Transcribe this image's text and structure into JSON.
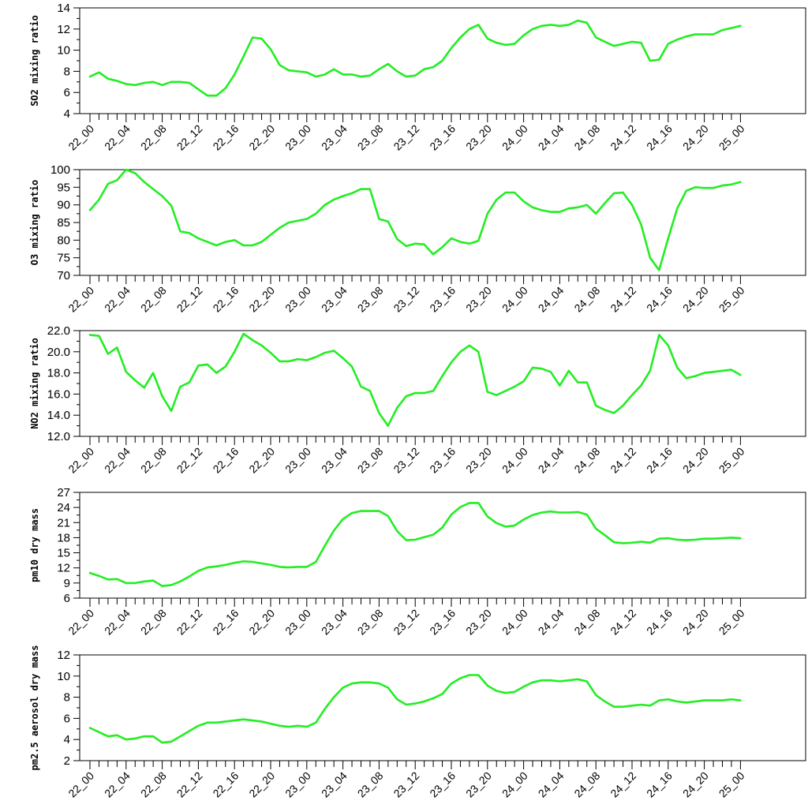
{
  "line_color": "#22ee22",
  "chart_data": [
    {
      "type": "line",
      "ylabel": "SO2 mixing ratio",
      "ylim": [
        4,
        14
      ],
      "yticks": [
        "4",
        "6",
        "8",
        "10",
        "12",
        "14"
      ],
      "xtick_labels": [
        "22_00",
        "22_04",
        "22_08",
        "22_12",
        "22_16",
        "22_20",
        "23_00",
        "23_04",
        "23_08",
        "23_12",
        "23_16",
        "23_20",
        "24_00",
        "24_04",
        "24_08",
        "24_12",
        "24_16",
        "24_20",
        "25_00"
      ],
      "grid": false,
      "legend": false,
      "values": [
        7.5,
        7.9,
        7.3,
        7.1,
        6.8,
        6.7,
        6.9,
        7.0,
        6.7,
        7.0,
        7.0,
        6.9,
        6.3,
        5.7,
        5.7,
        6.4,
        7.7,
        9.4,
        11.2,
        11.1,
        10.1,
        8.6,
        8.1,
        8.0,
        7.9,
        7.5,
        7.7,
        8.2,
        7.7,
        7.7,
        7.5,
        7.6,
        8.2,
        8.7,
        8.0,
        7.5,
        7.6,
        8.2,
        8.4,
        9.0,
        10.2,
        11.2,
        12.0,
        12.4,
        11.1,
        10.7,
        10.5,
        10.6,
        11.4,
        12.0,
        12.3,
        12.4,
        12.3,
        12.4,
        12.8,
        12.6,
        11.2,
        10.8,
        10.4,
        10.6,
        10.8,
        10.7,
        9.0,
        9.1,
        10.6,
        11.0,
        11.3,
        11.5,
        11.5,
        11.5,
        11.9,
        12.1,
        12.3
      ]
    },
    {
      "type": "line",
      "ylabel": "O3 mixing ratio",
      "ylim": [
        70,
        100
      ],
      "yticks": [
        "70",
        "75",
        "80",
        "85",
        "90",
        "95",
        "100"
      ],
      "xtick_labels": [
        "22_00",
        "22_04",
        "22_08",
        "22_12",
        "22_16",
        "22_20",
        "23_00",
        "23_04",
        "23_08",
        "23_12",
        "23_16",
        "23_20",
        "24_00",
        "24_04",
        "24_08",
        "24_12",
        "24_16",
        "24_20",
        "25_00"
      ],
      "grid": false,
      "legend": false,
      "values": [
        88.5,
        91.5,
        96.0,
        97.0,
        100.0,
        99.0,
        96.5,
        94.5,
        92.5,
        89.8,
        82.5,
        82.0,
        80.5,
        79.5,
        78.5,
        79.5,
        80.0,
        78.5,
        78.5,
        79.5,
        81.5,
        83.5,
        85.0,
        85.5,
        86.0,
        87.5,
        90.0,
        91.5,
        92.5,
        93.3,
        94.5,
        94.5,
        86.0,
        85.3,
        80.3,
        78.3,
        79.0,
        78.8,
        76.0,
        78.0,
        80.5,
        79.5,
        79.0,
        79.8,
        87.5,
        91.5,
        93.5,
        93.5,
        91.0,
        89.3,
        88.5,
        88.0,
        88.0,
        89.0,
        89.3,
        90.0,
        87.5,
        90.5,
        93.3,
        93.5,
        90.0,
        84.5,
        75.0,
        71.5,
        80.5,
        89.0,
        94.0,
        95.0,
        94.8,
        94.8,
        95.5,
        95.8,
        96.5
      ]
    },
    {
      "type": "line",
      "ylabel": "NO2 mixing ratio",
      "ylim": [
        12,
        22
      ],
      "yticks": [
        "12.0",
        "14.0",
        "16.0",
        "18.0",
        "20.0",
        "22.0"
      ],
      "xtick_labels": [
        "22_00",
        "22_04",
        "22_08",
        "22_12",
        "22_16",
        "22_20",
        "23_00",
        "23_04",
        "23_08",
        "23_12",
        "23_16",
        "23_20",
        "24_00",
        "24_04",
        "24_08",
        "24_12",
        "24_16",
        "24_20",
        "25_00"
      ],
      "grid": false,
      "legend": false,
      "values": [
        21.6,
        21.5,
        19.8,
        20.4,
        18.1,
        17.3,
        16.6,
        18.0,
        15.8,
        14.4,
        16.7,
        17.1,
        18.7,
        18.8,
        18.0,
        18.6,
        20.0,
        21.7,
        21.1,
        20.6,
        19.9,
        19.1,
        19.1,
        19.3,
        19.2,
        19.5,
        19.9,
        20.1,
        19.4,
        18.6,
        16.7,
        16.3,
        14.2,
        13.0,
        14.7,
        15.8,
        16.1,
        16.1,
        16.3,
        17.7,
        19.0,
        20.0,
        20.6,
        20.0,
        16.2,
        15.9,
        16.3,
        16.7,
        17.2,
        18.5,
        18.4,
        18.1,
        16.8,
        18.2,
        17.1,
        17.1,
        14.9,
        14.5,
        14.2,
        14.9,
        15.9,
        16.8,
        18.2,
        21.6,
        20.6,
        18.5,
        17.5,
        17.7,
        18.0,
        18.1,
        18.2,
        18.3,
        17.8
      ]
    },
    {
      "type": "line",
      "ylabel": "pm10 dry mass",
      "ylim": [
        6,
        27
      ],
      "yticks": [
        "6",
        "9",
        "12",
        "15",
        "18",
        "21",
        "24",
        "27"
      ],
      "xtick_labels": [
        "22_00",
        "22_04",
        "22_08",
        "22_12",
        "22_16",
        "22_20",
        "23_00",
        "23_04",
        "23_08",
        "23_12",
        "23_16",
        "23_20",
        "24_00",
        "24_04",
        "24_08",
        "24_12",
        "24_16",
        "24_20",
        "25_00"
      ],
      "grid": false,
      "legend": false,
      "values": [
        11.0,
        10.4,
        9.7,
        9.8,
        9.0,
        9.0,
        9.3,
        9.5,
        8.4,
        8.6,
        9.3,
        10.3,
        11.4,
        12.1,
        12.3,
        12.6,
        13.0,
        13.3,
        13.2,
        12.9,
        12.6,
        12.2,
        12.1,
        12.2,
        12.2,
        13.2,
        16.4,
        19.4,
        21.7,
        22.9,
        23.3,
        23.3,
        23.3,
        22.3,
        19.3,
        17.5,
        17.6,
        18.1,
        18.6,
        20.0,
        22.6,
        24.1,
        24.9,
        24.9,
        22.2,
        20.9,
        20.2,
        20.4,
        21.6,
        22.5,
        23.0,
        23.2,
        23.0,
        23.0,
        23.1,
        22.6,
        19.8,
        18.5,
        17.1,
        16.9,
        17.0,
        17.2,
        17.0,
        17.8,
        17.9,
        17.6,
        17.5,
        17.6,
        17.8,
        17.8,
        17.9,
        18.0,
        17.9
      ]
    },
    {
      "type": "line",
      "ylabel": "pm2.5 aerosol dry mass",
      "ylim": [
        2,
        12
      ],
      "yticks": [
        "2",
        "4",
        "6",
        "8",
        "10",
        "12"
      ],
      "xtick_labels": [
        "22_00",
        "22_04",
        "22_08",
        "22_12",
        "22_16",
        "22_20",
        "23_00",
        "23_04",
        "23_08",
        "23_12",
        "23_16",
        "23_20",
        "24_00",
        "24_04",
        "24_08",
        "24_12",
        "24_16",
        "24_20",
        "25_00"
      ],
      "grid": false,
      "legend": false,
      "values": [
        5.1,
        4.7,
        4.3,
        4.4,
        4.0,
        4.1,
        4.3,
        4.3,
        3.7,
        3.8,
        4.3,
        4.8,
        5.3,
        5.6,
        5.6,
        5.7,
        5.8,
        5.9,
        5.8,
        5.7,
        5.5,
        5.3,
        5.2,
        5.3,
        5.2,
        5.6,
        6.9,
        8.0,
        8.9,
        9.3,
        9.4,
        9.4,
        9.3,
        8.9,
        7.8,
        7.3,
        7.4,
        7.6,
        7.9,
        8.3,
        9.3,
        9.8,
        10.1,
        10.1,
        9.1,
        8.6,
        8.4,
        8.5,
        9.0,
        9.4,
        9.6,
        9.6,
        9.5,
        9.6,
        9.7,
        9.5,
        8.2,
        7.6,
        7.1,
        7.1,
        7.2,
        7.3,
        7.2,
        7.7,
        7.8,
        7.6,
        7.5,
        7.6,
        7.7,
        7.7,
        7.7,
        7.8,
        7.7
      ]
    }
  ]
}
